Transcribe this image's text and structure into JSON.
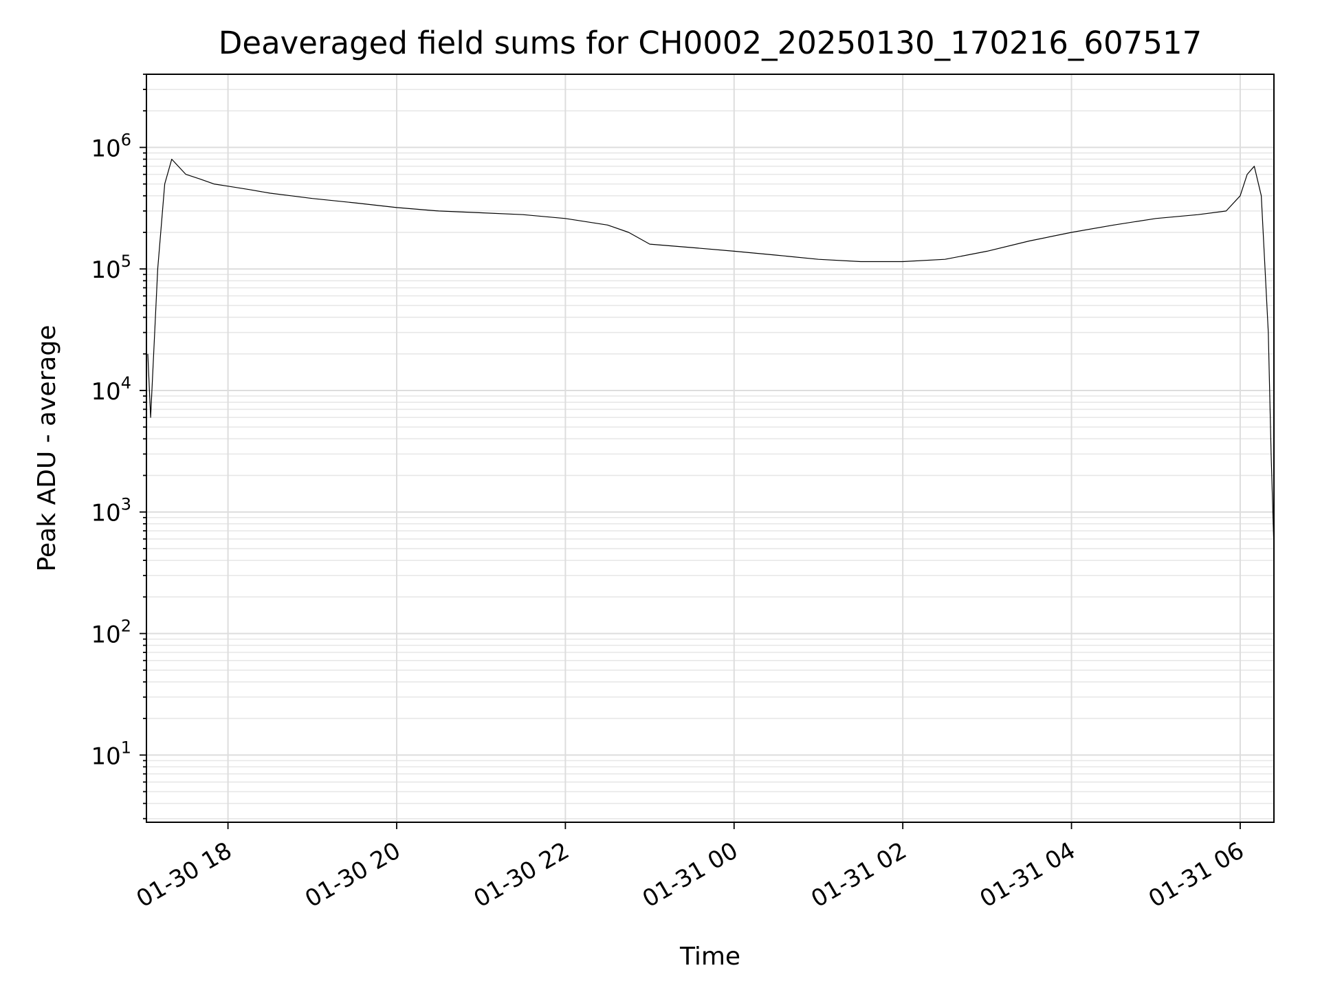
{
  "chart_data": {
    "type": "line",
    "title": "Deaveraged field sums for CH0002_20250130_170216_607517",
    "xlabel": "Time",
    "ylabel": "Peak ADU - average",
    "yscale": "log",
    "ylim": [
      2.8,
      4000000
    ],
    "xlim": [
      "01-30 17:02",
      "01-31 06:24"
    ],
    "x_ticks": [
      "01-30 18",
      "01-30 20",
      "01-30 22",
      "01-31 00",
      "01-31 02",
      "01-31 04",
      "01-31 06"
    ],
    "y_ticks": [
      {
        "base": "10",
        "exp": "1",
        "value": 10
      },
      {
        "base": "10",
        "exp": "2",
        "value": 100
      },
      {
        "base": "10",
        "exp": "3",
        "value": 1000
      },
      {
        "base": "10",
        "exp": "4",
        "value": 10000
      },
      {
        "base": "10",
        "exp": "5",
        "value": 100000
      },
      {
        "base": "10",
        "exp": "6",
        "value": 1000000
      }
    ],
    "grid": "major and minor",
    "line_color": "#000000",
    "series": [
      {
        "x": [
          "01-30 17:03",
          "01-30 17:05",
          "01-30 17:10",
          "01-30 17:15",
          "01-30 17:20",
          "01-30 17:30",
          "01-30 17:40",
          "01-30 17:50",
          "01-30 18:00",
          "01-30 18:15",
          "01-30 18:30",
          "01-30 18:45",
          "01-30 19:00",
          "01-30 19:30",
          "01-30 20:00",
          "01-30 20:30",
          "01-30 21:00",
          "01-30 21:30",
          "01-30 22:00",
          "01-30 22:30",
          "01-30 22:45",
          "01-30 23:00",
          "01-30 23:30",
          "01-31 00:00",
          "01-31 00:30",
          "01-31 01:00",
          "01-31 01:30",
          "01-31 02:00",
          "01-31 02:30",
          "01-31 03:00",
          "01-31 03:30",
          "01-31 04:00",
          "01-31 04:30",
          "01-31 05:00",
          "01-31 05:30",
          "01-31 05:50",
          "01-31 06:00",
          "01-31 06:05",
          "01-31 06:10",
          "01-31 06:15",
          "01-31 06:20",
          "01-31 06:22",
          "01-31 06:24"
        ],
        "y": [
          20000,
          6000,
          100000,
          500000,
          800000,
          600000,
          550000,
          500000,
          480000,
          450000,
          420000,
          400000,
          380000,
          350000,
          320000,
          300000,
          290000,
          280000,
          260000,
          230000,
          200000,
          160000,
          150000,
          140000,
          130000,
          120000,
          115000,
          115000,
          120000,
          140000,
          170000,
          200000,
          230000,
          260000,
          280000,
          300000,
          400000,
          600000,
          700000,
          400000,
          30000,
          3000,
          500
        ]
      }
    ]
  }
}
